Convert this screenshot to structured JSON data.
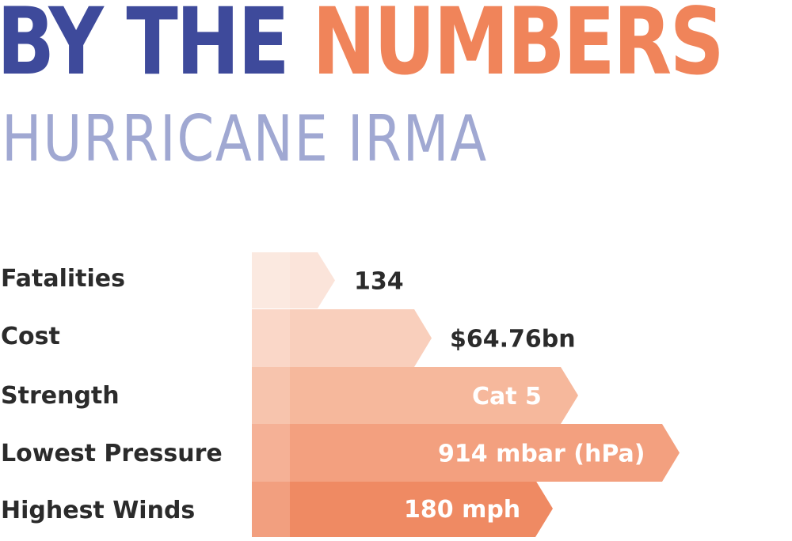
{
  "header": {
    "title_part1": "BY THE",
    "title_part2": "NUMBERS",
    "subtitle": "HURRICANE IRMA"
  },
  "colors": {
    "title_part1": "#3e4a9b",
    "title_part2": "#f0845a",
    "subtitle": "#a0a8d2",
    "label": "#2b2b2b",
    "value_dark": "#2b2b2b",
    "value_light": "#ffffff"
  },
  "stats": [
    {
      "label": "Fatalities",
      "value": "134",
      "bar_color": "#fbe4da"
    },
    {
      "label": "Cost",
      "value": "$64.76bn",
      "bar_color": "#f9cfbc"
    },
    {
      "label": "Strength",
      "value": "Cat 5",
      "bar_color": "#f6b89c"
    },
    {
      "label": "Lowest Pressure",
      "value": "914 mbar (hPa)",
      "bar_color": "#f3a07f"
    },
    {
      "label": "Highest Winds",
      "value": "180 mph",
      "bar_color": "#ef8a63"
    }
  ]
}
